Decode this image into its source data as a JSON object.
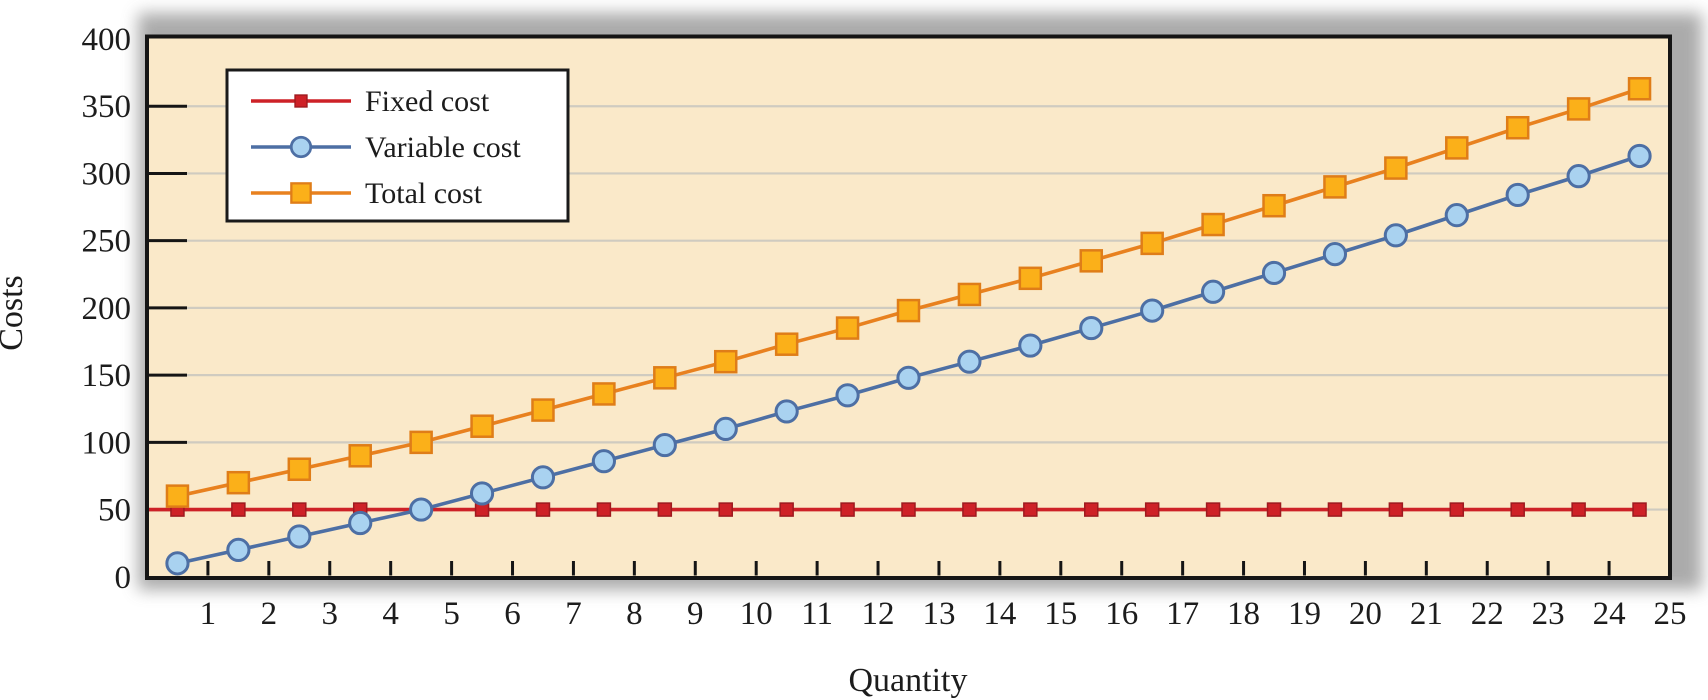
{
  "figure": {
    "x_axis_title": "Quantity",
    "y_axis_title": "Costs"
  },
  "chart_data": {
    "type": "line",
    "title": "",
    "xlabel": "Quantity",
    "ylabel": "Costs",
    "categories": [
      1,
      2,
      3,
      4,
      5,
      6,
      7,
      8,
      9,
      10,
      11,
      12,
      13,
      14,
      15,
      16,
      17,
      18,
      19,
      20,
      21,
      22,
      23,
      24,
      25
    ],
    "series": [
      {
        "name": "Fixed cost",
        "marker": "square-small",
        "line_color": "#CD2127",
        "marker_fill": "#CE2127",
        "marker_stroke": "#9E1A1F",
        "extends_to_edges": true,
        "values": [
          50,
          50,
          50,
          50,
          50,
          50,
          50,
          50,
          50,
          50,
          50,
          50,
          50,
          50,
          50,
          50,
          50,
          50,
          50,
          50,
          50,
          50,
          50,
          50,
          50
        ]
      },
      {
        "name": "Variable cost",
        "marker": "circle",
        "line_color": "#4D6FA4",
        "marker_fill": "#A9D2F0",
        "marker_stroke": "#4D6FA4",
        "extends_to_edges": false,
        "values": [
          10,
          20,
          30,
          40,
          50,
          62,
          74,
          86,
          98,
          110,
          123,
          135,
          148,
          160,
          172,
          185,
          198,
          212,
          226,
          240,
          254,
          269,
          284,
          298,
          313
        ]
      },
      {
        "name": "Total cost",
        "marker": "square",
        "line_color": "#E8811F",
        "marker_fill": "#FBB019",
        "marker_stroke": "#DF7D18",
        "extends_to_edges": false,
        "values": [
          60,
          70,
          80,
          90,
          100,
          112,
          124,
          136,
          148,
          160,
          173,
          185,
          198,
          210,
          222,
          235,
          248,
          262,
          276,
          290,
          304,
          319,
          334,
          348,
          363
        ]
      }
    ],
    "ylim": [
      0,
      400
    ],
    "y_ticks": [
      0,
      50,
      100,
      150,
      200,
      250,
      300,
      350,
      400
    ],
    "grid": true,
    "legend_position": "top-left",
    "legend_entries": [
      "Fixed cost",
      "Variable cost",
      "Total cost"
    ],
    "plot_background_color": "#FAE9C9",
    "grid_color": "#CFCBC0",
    "axis_color": "#151515"
  }
}
